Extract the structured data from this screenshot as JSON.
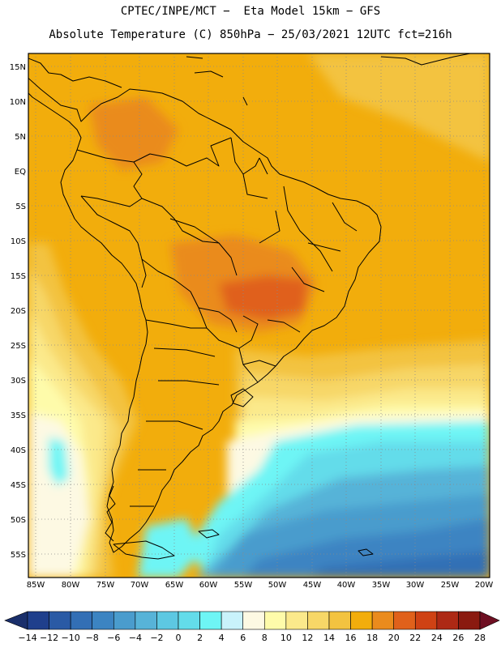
{
  "title": {
    "line1": "CPTEC/INPE/MCT −  Eta Model 15km − GFS",
    "line2": "Absolute Temperature (C) 850hPa − 25/03/2021 12UTC fct=216h"
  },
  "lat_labels": [
    "15N",
    "10N",
    "5N",
    "EQ",
    "5S",
    "10S",
    "15S",
    "20S",
    "25S",
    "30S",
    "35S",
    "40S",
    "45S",
    "50S",
    "55S"
  ],
  "lon_labels": [
    "85W",
    "80W",
    "75W",
    "70W",
    "65W",
    "60W",
    "55W",
    "50W",
    "45W",
    "40W",
    "35W",
    "30W",
    "25W",
    "20W"
  ],
  "colorbar": {
    "labels": [
      "−14",
      "−12",
      "−10",
      "−8",
      "−6",
      "−4",
      "−2",
      "0",
      "2",
      "4",
      "6",
      "8",
      "10",
      "12",
      "14",
      "16",
      "18",
      "20",
      "22",
      "24",
      "26",
      "28"
    ],
    "colors": [
      "#1f3f8c",
      "#2a5aa5",
      "#336fb5",
      "#3c84c2",
      "#4a9ccd",
      "#57b3d8",
      "#5dc8e2",
      "#63dcea",
      "#6ef5f5",
      "#c9f2fb",
      "#fdf9e3",
      "#fefbaa",
      "#fbe98b",
      "#f7d767",
      "#f3c340",
      "#f2ad0c",
      "#ea8b1d",
      "#e0611b",
      "#cf4214",
      "#ad2915",
      "#8a1a10"
    ],
    "low_color": "#1a2f6b",
    "high_color": "#6e0f22"
  },
  "map_colors": {
    "ocean_warm": "#f2ad0c",
    "t16": "#f3c340",
    "t14": "#f7d767",
    "t12": "#fbe98b",
    "t10": "#fefbaa",
    "t8": "#fdf9e3",
    "t4": "#6ef5f5",
    "t2": "#63dcea",
    "t0": "#57b3d8",
    "tm2": "#4a9ccd",
    "tm4": "#3c84c2",
    "tm6": "#336fb5",
    "t20": "#ea8b1d",
    "t22": "#e0611b"
  }
}
